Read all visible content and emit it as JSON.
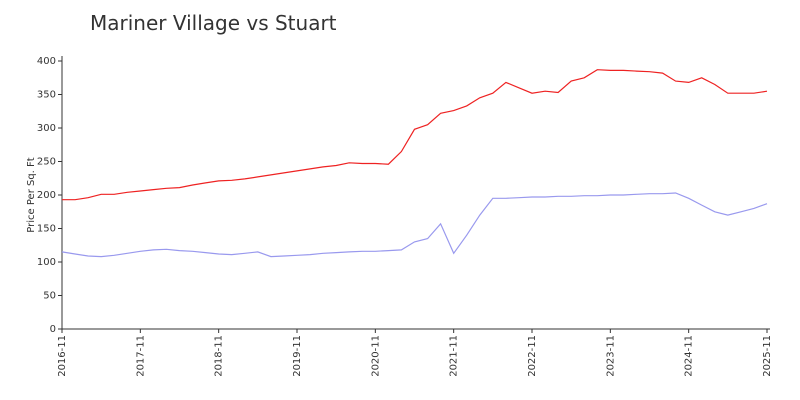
{
  "chart_data": {
    "type": "line",
    "title": "Mariner Village vs Stuart",
    "ylabel": "Price Per Sq. Ft",
    "x": [
      "2016-11",
      "2017-01",
      "2017-03",
      "2017-05",
      "2017-07",
      "2017-09",
      "2017-11",
      "2018-01",
      "2018-03",
      "2018-05",
      "2018-07",
      "2018-09",
      "2018-11",
      "2019-01",
      "2019-03",
      "2019-05",
      "2019-07",
      "2019-09",
      "2019-11",
      "2020-01",
      "2020-03",
      "2020-05",
      "2020-07",
      "2020-09",
      "2020-11",
      "2021-01",
      "2021-03",
      "2021-05",
      "2021-07",
      "2021-09",
      "2021-11",
      "2022-01",
      "2022-03",
      "2022-05",
      "2022-07",
      "2022-09",
      "2022-11",
      "2023-01",
      "2023-03",
      "2023-05",
      "2023-07",
      "2023-09",
      "2023-11",
      "2024-01",
      "2024-03",
      "2024-05",
      "2024-07",
      "2024-09",
      "2024-11",
      "2025-01",
      "2025-03",
      "2025-05",
      "2025-07",
      "2025-09",
      "2025-11"
    ],
    "series": [
      {
        "color": "#ee2222",
        "values": [
          193,
          193,
          196,
          201,
          201,
          204,
          206,
          208,
          210,
          211,
          215,
          218,
          221,
          222,
          224,
          227,
          230,
          233,
          236,
          239,
          242,
          244,
          248,
          247,
          247,
          246,
          265,
          298,
          305,
          322,
          326,
          333,
          345,
          352,
          368,
          360,
          352,
          355,
          353,
          370,
          375,
          387,
          386,
          386,
          385,
          384,
          382,
          370,
          368,
          375,
          365,
          352,
          352,
          352,
          355
        ]
      },
      {
        "color": "#9999ee",
        "values": [
          115,
          112,
          109,
          108,
          110,
          113,
          116,
          118,
          119,
          117,
          116,
          114,
          112,
          111,
          113,
          115,
          108,
          109,
          110,
          111,
          113,
          114,
          115,
          116,
          116,
          117,
          118,
          130,
          135,
          157,
          113,
          140,
          170,
          195,
          195,
          196,
          197,
          197,
          198,
          198,
          199,
          199,
          200,
          200,
          201,
          202,
          202,
          203,
          195,
          185,
          175,
          170,
          175,
          180,
          187
        ]
      }
    ],
    "xlim": [
      "2016-11",
      "2025-11"
    ],
    "xticks": [
      "2016-11",
      "2017-11",
      "2018-11",
      "2019-11",
      "2020-11",
      "2021-11",
      "2022-11",
      "2023-11",
      "2024-11",
      "2025-11"
    ],
    "ylim": [
      0,
      400
    ],
    "yticks": [
      0,
      50,
      100,
      150,
      200,
      250,
      300,
      350,
      400
    ]
  }
}
